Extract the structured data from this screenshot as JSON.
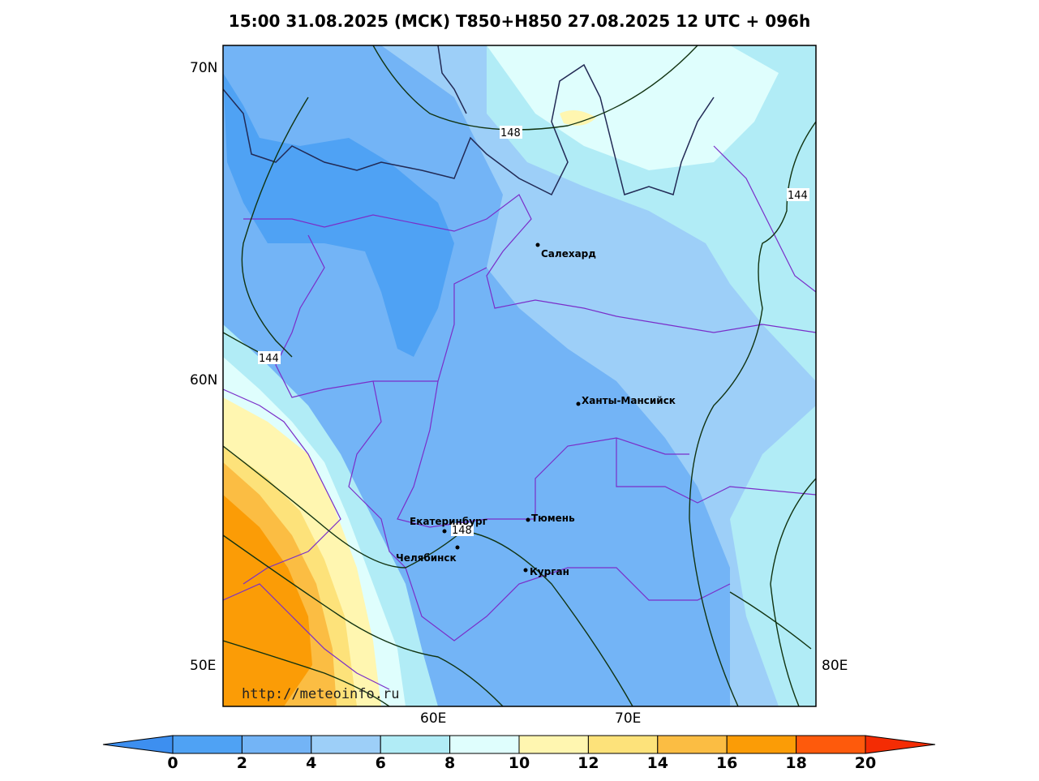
{
  "title": "15:00 31.08.2025 (МСК) T850+H850 27.08.2025 12 UTC + 096h",
  "lat_labels": [
    "70N",
    "60N",
    "50E"
  ],
  "lon_labels": [
    "60E",
    "70E",
    "80E"
  ],
  "cities": [
    {
      "name": "Салехард"
    },
    {
      "name": "Ханты-Мансийск"
    },
    {
      "name": "Тюмень"
    },
    {
      "name": "Екатеринбург"
    },
    {
      "name": "Челябинск"
    },
    {
      "name": "Курган"
    }
  ],
  "contour_labels": [
    "148",
    "144",
    "144",
    "148"
  ],
  "credit": "http://meteoinfo.ru",
  "colorbar": {
    "ticks": [
      "0",
      "2",
      "4",
      "6",
      "8",
      "10",
      "12",
      "14",
      "16",
      "18",
      "20"
    ],
    "colors": [
      "#3d8ff0",
      "#4fa2f4",
      "#73b4f6",
      "#9dcff8",
      "#b1ecf6",
      "#dffefd",
      "#fff6b0",
      "#fde27a",
      "#fbbd43",
      "#fb9c06",
      "#fe5a0c",
      "#f42c04"
    ]
  }
}
